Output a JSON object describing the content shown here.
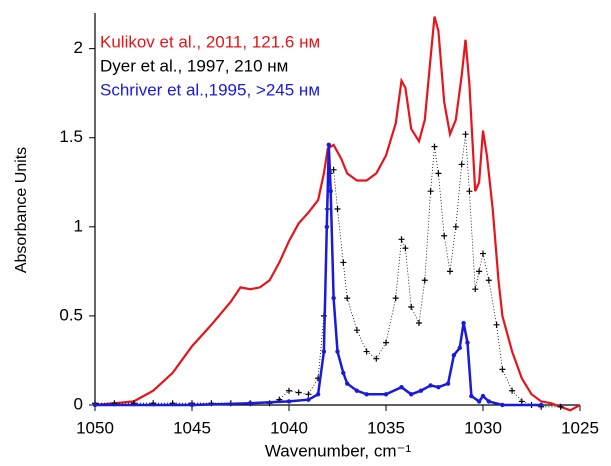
{
  "chart_data": {
    "type": "line",
    "xlabel": "Wavenumber, cm⁻¹",
    "ylabel": "Absorbance Units",
    "xlim": [
      1050,
      1025
    ],
    "xticks": [
      1050,
      1045,
      1040,
      1035,
      1030,
      1025
    ],
    "ylim": [
      0,
      2.2
    ],
    "yticks": [
      0,
      0.5,
      1,
      1.5,
      2
    ],
    "legend": "upper left",
    "series": [
      {
        "name": "Kulikov et al., 2011, 121.6 нм",
        "color": "#e8141b",
        "marker": "none",
        "x": [
          1050,
          1049,
          1048,
          1047,
          1046,
          1045,
          1044,
          1043,
          1042.5,
          1042,
          1041.5,
          1041,
          1040.5,
          1040,
          1039.5,
          1039,
          1038.5,
          1038.2,
          1038,
          1037.7,
          1037.3,
          1037,
          1036.5,
          1036,
          1035.5,
          1035,
          1034.5,
          1034.2,
          1034,
          1033.7,
          1033.3,
          1033,
          1032.7,
          1032.5,
          1032.3,
          1032,
          1031.7,
          1031.4,
          1031.1,
          1030.9,
          1030.7,
          1030.4,
          1030.2,
          1030,
          1029.8,
          1029.5,
          1029.2,
          1029,
          1028.5,
          1028,
          1027.5,
          1027,
          1026.5,
          1026,
          1025.5,
          1025
        ],
        "values": [
          0,
          0.01,
          0.02,
          0.08,
          0.18,
          0.33,
          0.45,
          0.58,
          0.66,
          0.65,
          0.66,
          0.7,
          0.8,
          0.92,
          1.02,
          1.08,
          1.15,
          1.3,
          1.44,
          1.46,
          1.38,
          1.3,
          1.26,
          1.26,
          1.3,
          1.4,
          1.58,
          1.82,
          1.78,
          1.55,
          1.48,
          1.6,
          1.95,
          2.18,
          2.1,
          1.7,
          1.52,
          1.6,
          1.85,
          2.05,
          1.8,
          1.2,
          1.25,
          1.54,
          1.4,
          1.1,
          0.7,
          0.5,
          0.3,
          0.15,
          0.06,
          0.02,
          0.01,
          -0.01,
          -0.03,
          0
        ]
      },
      {
        "name": "Dyer et al., 1997, 210 нм",
        "color": "#000000",
        "marker": "cross",
        "x": [
          1050,
          1049,
          1048,
          1047,
          1046,
          1045,
          1044,
          1043,
          1042,
          1041,
          1040.5,
          1040,
          1039.5,
          1039,
          1038.5,
          1038.2,
          1038,
          1037.9,
          1037.7,
          1037.5,
          1037.2,
          1037,
          1036.5,
          1036,
          1035.5,
          1035,
          1034.5,
          1034.2,
          1034,
          1033.7,
          1033.3,
          1033,
          1032.7,
          1032.5,
          1032.3,
          1032,
          1031.7,
          1031.4,
          1031.1,
          1030.9,
          1030.7,
          1030.4,
          1030.2,
          1030,
          1029.7,
          1029.3,
          1029,
          1028.5,
          1028,
          1027.5,
          1027,
          1026
        ],
        "values": [
          0.01,
          0.01,
          0.01,
          0.01,
          0.01,
          0.01,
          0.01,
          0.01,
          0.01,
          0.01,
          0.03,
          0.08,
          0.07,
          0.06,
          0.15,
          0.5,
          1.1,
          1.3,
          1.32,
          1.1,
          0.8,
          0.6,
          0.42,
          0.3,
          0.26,
          0.35,
          0.6,
          0.93,
          0.88,
          0.55,
          0.46,
          0.7,
          1.2,
          1.45,
          1.3,
          0.95,
          0.75,
          1.0,
          1.35,
          1.52,
          1.2,
          0.65,
          0.75,
          0.85,
          0.7,
          0.45,
          0.2,
          0.08,
          0.02,
          0,
          -0.01,
          -0.01
        ]
      },
      {
        "name": "Schriver et al.,1995, >245 нм",
        "color": "#1a1adc",
        "marker": "dot",
        "x": [
          1050,
          1045,
          1042,
          1040,
          1039,
          1038.5,
          1038.2,
          1038.05,
          1037.95,
          1037.85,
          1037.7,
          1037.5,
          1037.2,
          1037,
          1036.5,
          1036,
          1035,
          1034.2,
          1033.7,
          1033.2,
          1032.7,
          1032.3,
          1031.8,
          1031.5,
          1031.2,
          1031,
          1030.8,
          1030.6,
          1030.2,
          1030,
          1029.7,
          1029,
          1027
        ],
        "values": [
          0,
          0,
          0.01,
          0.02,
          0.03,
          0.06,
          0.3,
          1.0,
          1.46,
          1.2,
          0.6,
          0.3,
          0.18,
          0.12,
          0.08,
          0.06,
          0.06,
          0.1,
          0.06,
          0.08,
          0.11,
          0.1,
          0.12,
          0.28,
          0.32,
          0.46,
          0.35,
          0.05,
          0.02,
          0.05,
          0.02,
          0,
          0
        ]
      }
    ]
  }
}
